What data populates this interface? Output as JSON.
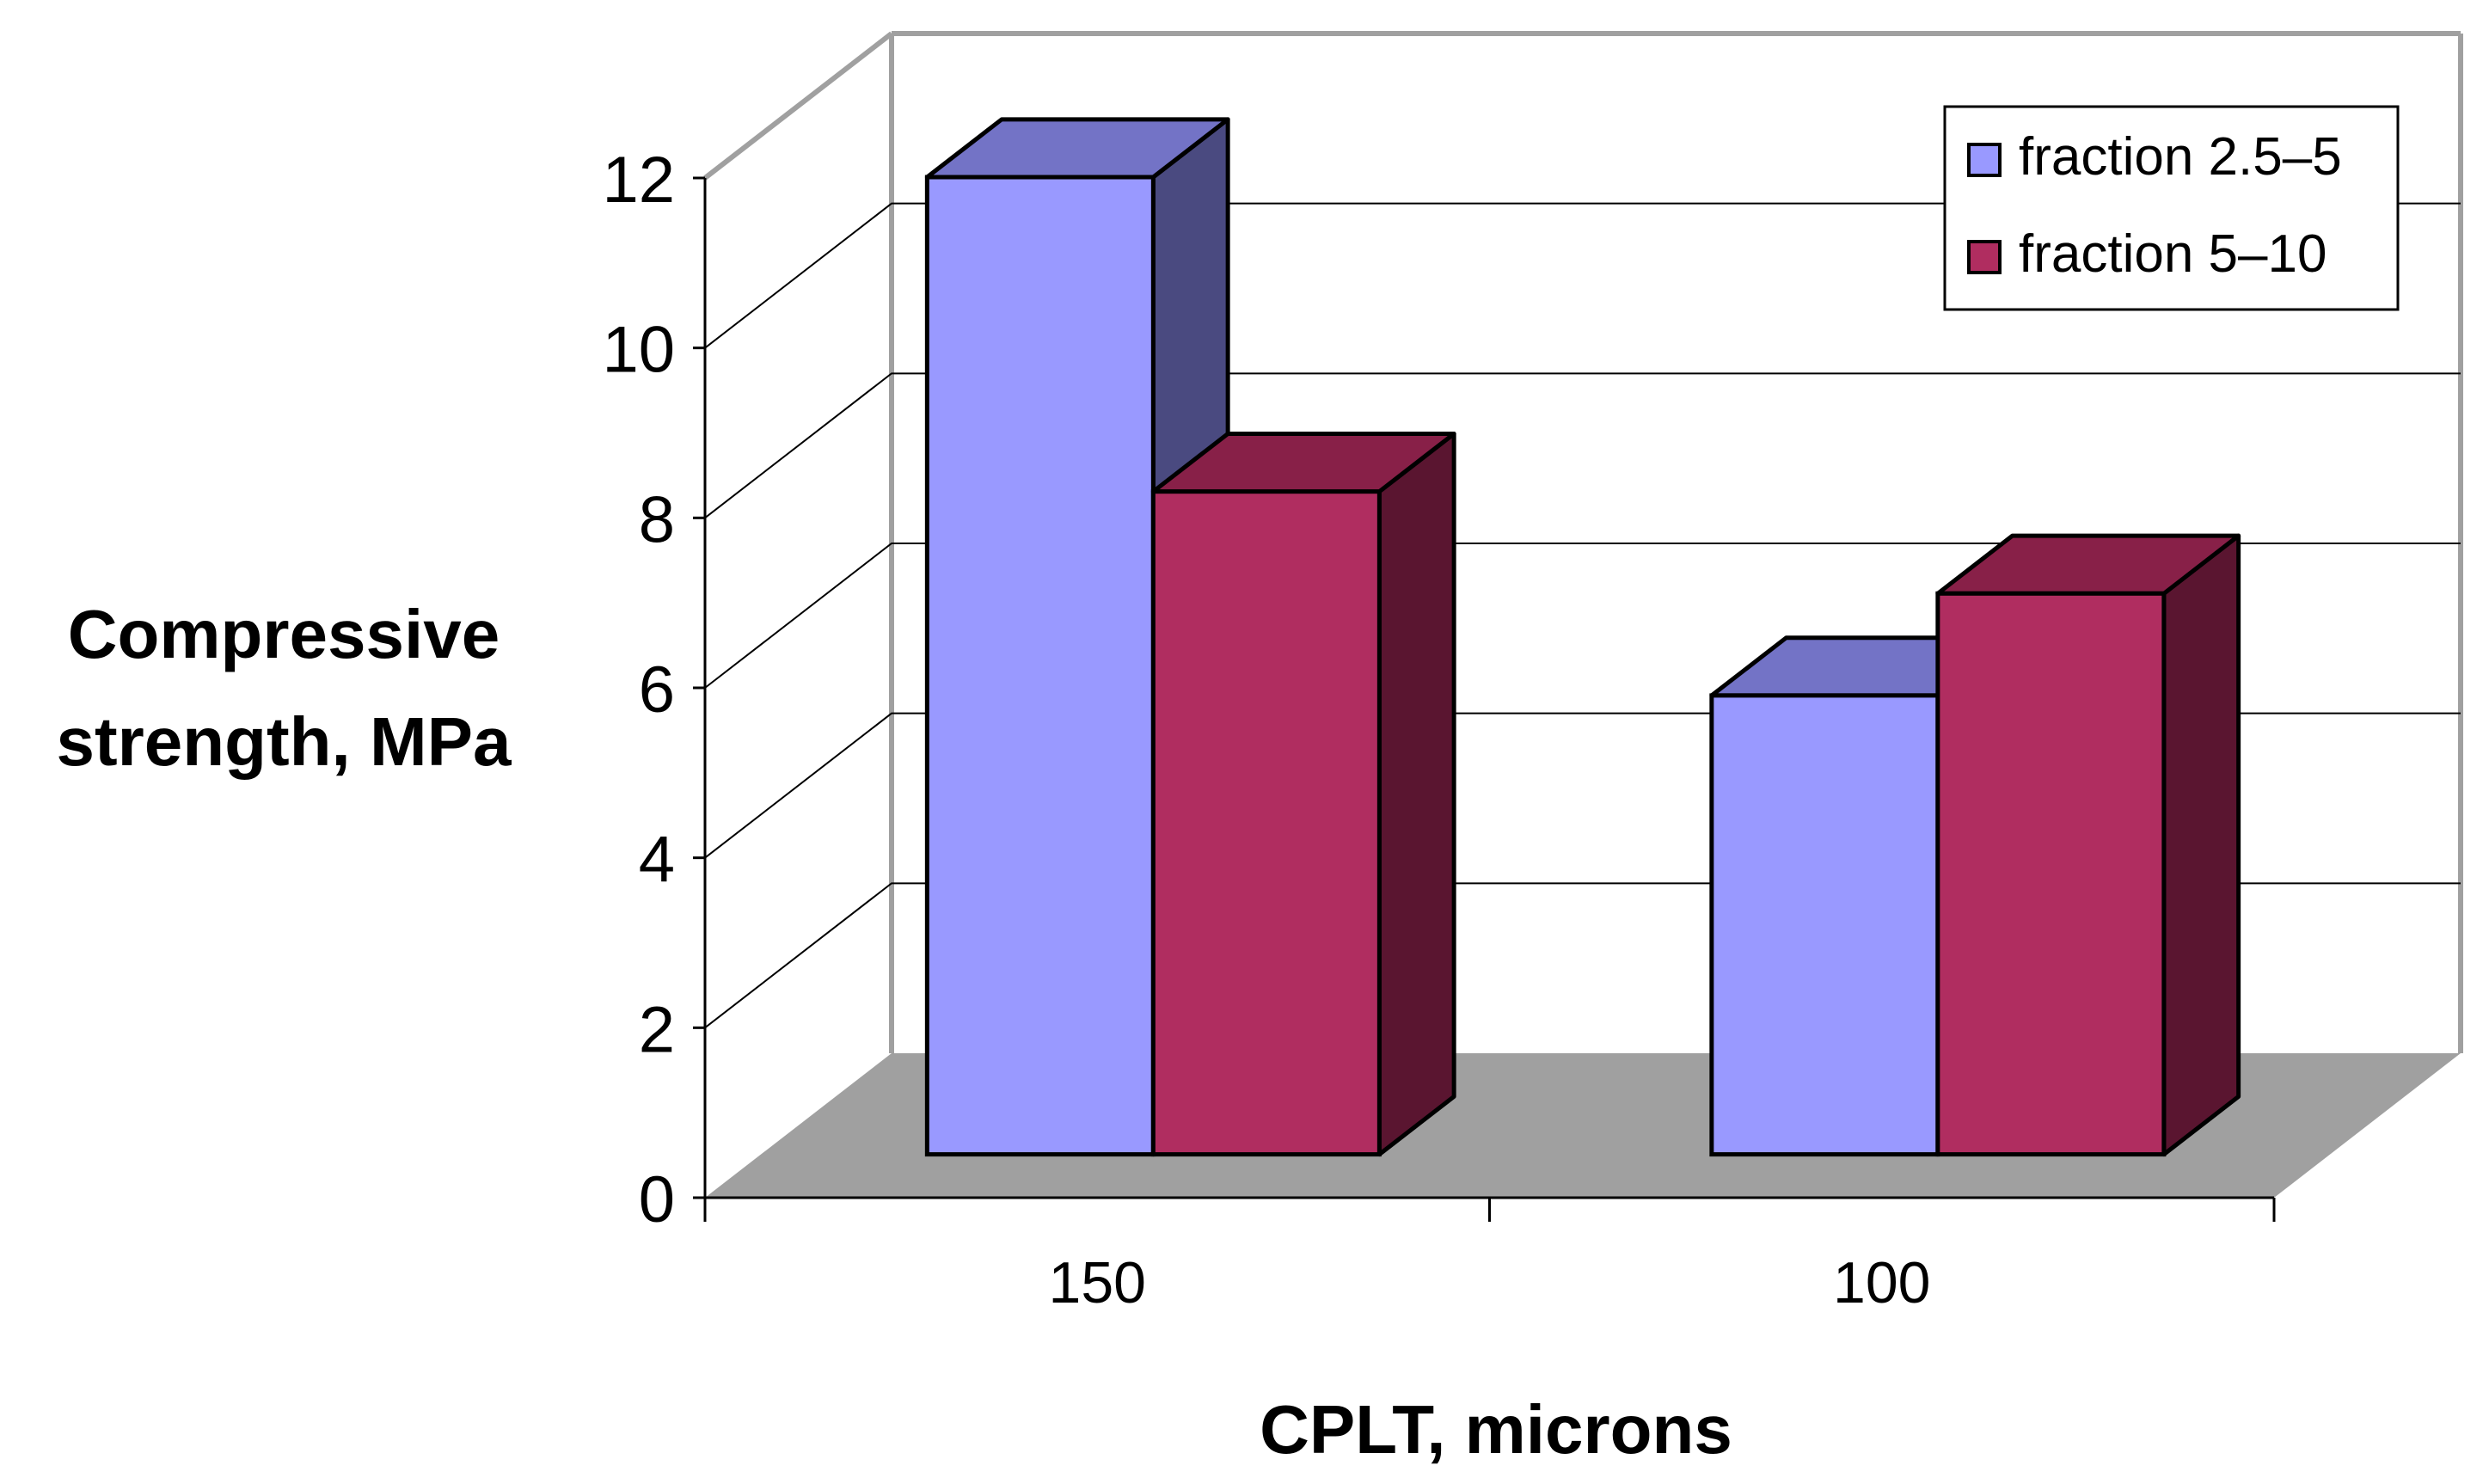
{
  "chart_data": {
    "type": "bar",
    "style": "3d-clustered-column",
    "categories": [
      "150",
      "100"
    ],
    "series": [
      {
        "name": "fraction 2.5–5",
        "values": [
          11.5,
          5.4
        ],
        "color": "#9999FF",
        "top_color": "#7373C6",
        "side_color": "#4A4A80"
      },
      {
        "name": "fraction 5–10",
        "values": [
          7.8,
          6.6
        ],
        "color": "#B02D60",
        "top_color": "#882048",
        "side_color": "#5A1530"
      }
    ],
    "ylim": [
      0,
      12
    ],
    "yticks": [
      "0",
      "2",
      "4",
      "6",
      "8",
      "10",
      "12"
    ],
    "ylabel_lines": [
      "Compressive",
      "strength, MPa"
    ],
    "xlabel": "CPLT, microns",
    "legend_position": "top-right",
    "gridlines": true,
    "colors": {
      "floor": "#A0A0A0",
      "wall_line": "#A0A0A0",
      "grid": "#000000"
    }
  }
}
